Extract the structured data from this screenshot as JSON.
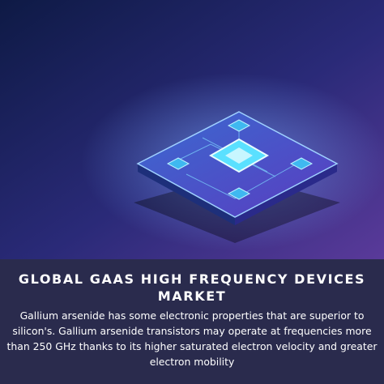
{
  "header": {
    "title": "GLOBAL GAAS HIGH FREQUENCY DEVICES MARKET"
  },
  "body": {
    "text": "Gallium arsenide has some electronic properties that are superior to silicon's. Gallium arsenide transistors may operate at frequencies more than 250 GHz thanks to its higher saturated electron velocity and greater electron mobility"
  }
}
